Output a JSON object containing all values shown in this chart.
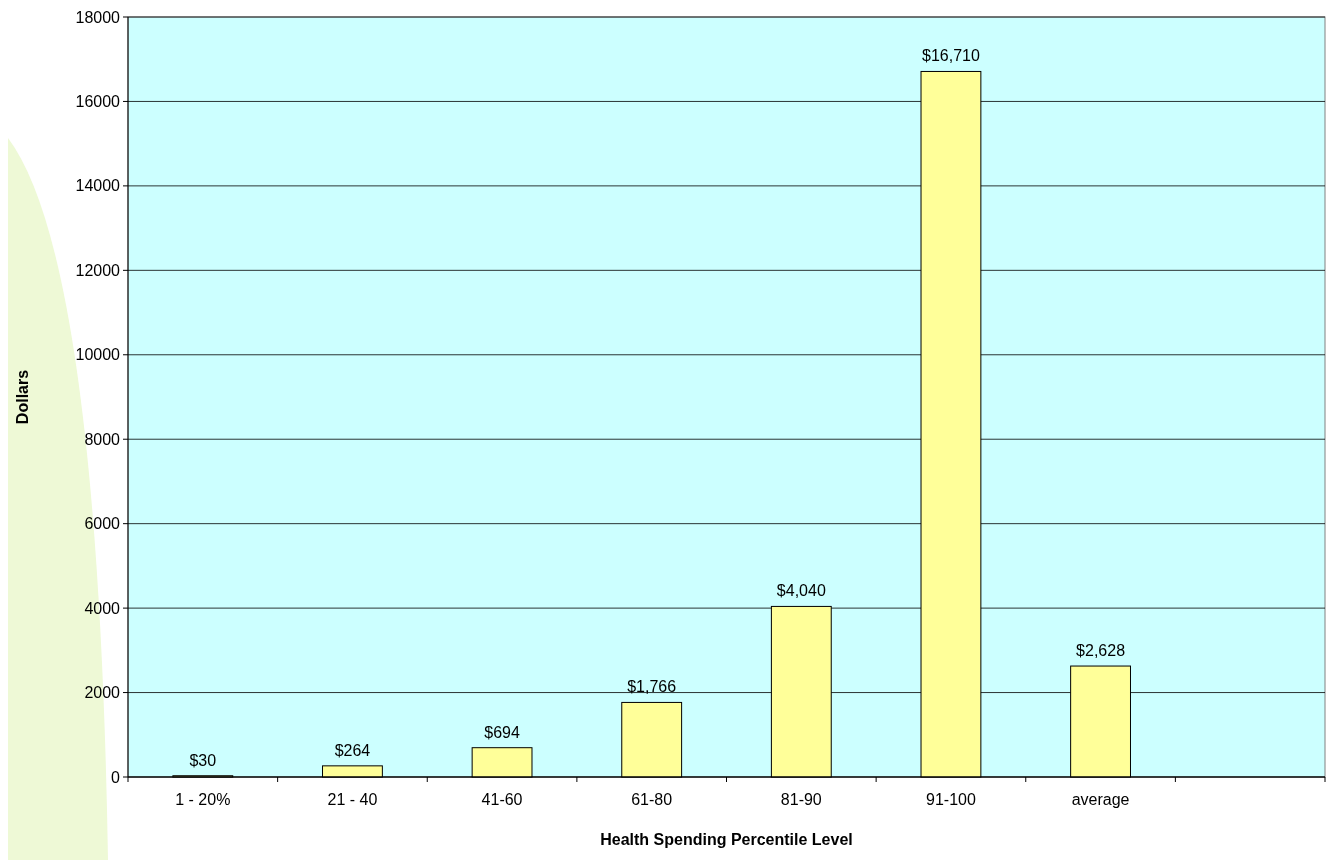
{
  "chart_data": {
    "type": "bar",
    "xlabel": "Health Spending Percentile Level",
    "ylabel": "Dollars",
    "categories": [
      "1 - 20%",
      "21 - 40",
      "41-60",
      "61-80",
      "81-90",
      "91-100",
      "average",
      null
    ],
    "values": [
      30,
      264,
      694,
      1766,
      4040,
      16710,
      2628,
      null
    ],
    "value_labels": [
      "$30",
      "$264",
      "$694",
      "$1,766",
      "$4,040",
      "$16,710",
      "$2,628",
      null
    ],
    "color": "#ffff99",
    "ylim": [
      0,
      18000
    ],
    "yticks": [
      0,
      2000,
      4000,
      6000,
      8000,
      10000,
      12000,
      14000,
      16000,
      18000
    ],
    "grid": "y"
  }
}
